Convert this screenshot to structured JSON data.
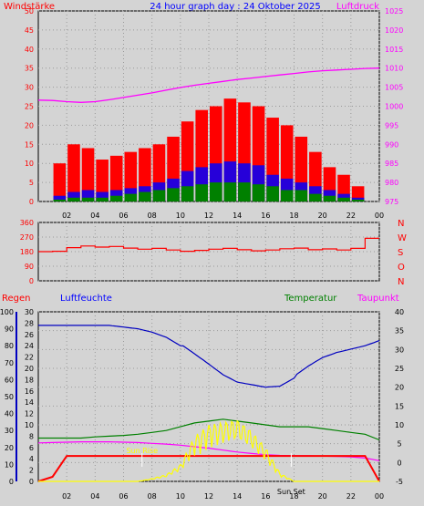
{
  "header": {
    "left_label": "Windstärke",
    "title": "24 hour graph day : 24 Oktober 2025",
    "right_label": "Luftdruck"
  },
  "colors": {
    "wind": "#ff0000",
    "gust": "#0000ff",
    "calm": "#008000",
    "pressure": "#ff00ff",
    "direction": "#ff0000",
    "humidity": "#0000c0",
    "temperature": "#008000",
    "dewpoint": "#ff00ff",
    "rain": "#ff0000",
    "sun": "#ffff00",
    "axis": "#000000"
  },
  "time_ticks": [
    "02",
    "04",
    "06",
    "08",
    "10",
    "12",
    "14",
    "16",
    "18",
    "20",
    "22",
    "00"
  ],
  "chart_data": [
    {
      "type": "bar",
      "y_left": {
        "label": "Windstärke",
        "ticks": [
          0,
          5,
          10,
          15,
          20,
          25,
          30,
          35,
          40,
          45,
          50
        ],
        "lim": [
          0,
          50
        ]
      },
      "y_right": {
        "label": "Luftdruck",
        "ticks": [
          975,
          980,
          985,
          990,
          995,
          1000,
          1005,
          1010,
          1015,
          1020,
          1025
        ],
        "lim": [
          975,
          1025
        ]
      },
      "x_hours": [
        0,
        1,
        2,
        3,
        4,
        5,
        6,
        7,
        8,
        9,
        10,
        11,
        12,
        13,
        14,
        15,
        16,
        17,
        18,
        19,
        20,
        21,
        22,
        23,
        24
      ],
      "series": [
        {
          "name": "",
          "color_key": "wind",
          "values": [
            0,
            10,
            15,
            14,
            11,
            12,
            13,
            14,
            15,
            17,
            21,
            24,
            25,
            27,
            26,
            25,
            22,
            20,
            17,
            13,
            9,
            7,
            4,
            0,
            0
          ]
        },
        {
          "name": "",
          "color_key": "gust",
          "values": [
            0,
            1.5,
            2.5,
            3,
            2.5,
            3,
            3.5,
            4,
            5,
            6,
            8,
            9,
            10,
            10.5,
            10,
            9.5,
            7,
            6,
            5,
            4,
            3,
            2,
            1,
            0,
            0
          ]
        },
        {
          "name": "",
          "color_key": "calm",
          "values": [
            0,
            0.5,
            1,
            1,
            1,
            1.5,
            2,
            2.5,
            3,
            3.5,
            4,
            4.5,
            5,
            5,
            5,
            4.5,
            4,
            3,
            3,
            2,
            1.5,
            1,
            0.5,
            0,
            0
          ]
        },
        {
          "name": "",
          "color_key": "pressure",
          "values": [
            1001.6,
            1001.5,
            1001.2,
            1001,
            1001.2,
            1001.7,
            1002.3,
            1002.9,
            1003.5,
            1004.2,
            1004.9,
            1005.5,
            1006,
            1006.5,
            1007,
            1007.4,
            1007.8,
            1008.2,
            1008.6,
            1009,
            1009.3,
            1009.5,
            1009.7,
            1009.9,
            1010
          ]
        }
      ]
    },
    {
      "type": "line",
      "y_left": {
        "ticks": [
          0,
          90,
          180,
          270,
          360
        ],
        "lim": [
          0,
          360
        ]
      },
      "y_right_labels": [
        "N",
        "W",
        "S",
        "O",
        "N"
      ],
      "x_hours": [
        0,
        1,
        2,
        3,
        4,
        5,
        6,
        7,
        8,
        9,
        10,
        11,
        12,
        13,
        14,
        15,
        16,
        17,
        18,
        19,
        20,
        21,
        22,
        23,
        24
      ],
      "series": [
        {
          "name": "",
          "color_key": "direction",
          "values": [
            180,
            182,
            205,
            215,
            208,
            212,
            202,
            195,
            200,
            190,
            182,
            188,
            195,
            200,
            192,
            185,
            190,
            198,
            202,
            192,
            197,
            190,
            200,
            262,
            262
          ]
        }
      ]
    },
    {
      "type": "line",
      "labels": {
        "rain": "Regen",
        "humidity": "Luftfeuchte",
        "temperature": "Temperatur",
        "dewpoint": "Taupunkt"
      },
      "y_humidity": {
        "ticks": [
          0,
          10,
          20,
          30,
          40,
          50,
          60,
          70,
          80,
          90,
          100
        ],
        "lim": [
          0,
          100
        ]
      },
      "y_rain": {
        "ticks": [
          0,
          2,
          4,
          6,
          8,
          10,
          12,
          14,
          16,
          18,
          20,
          22,
          24,
          26,
          28,
          30
        ],
        "lim": [
          0,
          30
        ]
      },
      "y_temperature": {
        "ticks": [
          -5,
          0,
          5,
          10,
          15,
          20,
          25,
          30,
          35,
          40
        ],
        "lim": [
          -5,
          40
        ]
      },
      "x_hours": [
        0,
        1,
        2,
        3,
        4,
        5,
        6,
        7,
        8,
        9,
        10,
        11,
        12,
        13,
        14,
        15,
        16,
        17,
        18,
        19,
        20,
        21,
        22,
        23,
        24
      ],
      "annotations": [
        {
          "text": "Sun Rise",
          "hour": 7.3
        },
        {
          "text": "Sun Set",
          "hour": 17.8
        }
      ],
      "series": [
        {
          "name": "",
          "color_key": "humidity",
          "axis": "humidity",
          "values": [
            92,
            92,
            92,
            92,
            92,
            92,
            91,
            90,
            88,
            85,
            80,
            74,
            68,
            62,
            58,
            57,
            56,
            57,
            62,
            68,
            73,
            76,
            78,
            80,
            83
          ]
        },
        {
          "name": "",
          "color_key": "temperature",
          "axis": "temperature",
          "values": [
            6.5,
            6.5,
            6.5,
            6.5,
            6.8,
            7,
            7.2,
            7.5,
            8,
            8.5,
            9.5,
            10.5,
            11,
            11.5,
            11,
            10.5,
            10,
            9.5,
            9.5,
            9.5,
            9,
            8.5,
            8,
            7.5,
            6
          ]
        },
        {
          "name": "",
          "color_key": "dewpoint",
          "axis": "temperature",
          "values": [
            5.2,
            5.3,
            5.4,
            5.5,
            5.5,
            5.5,
            5.4,
            5.3,
            5.1,
            4.9,
            4.6,
            4.2,
            3.8,
            3.3,
            2.8,
            2.4,
            2.1,
            1.9,
            1.8,
            1.8,
            1.7,
            1.6,
            1.5,
            1.2,
            0.5
          ]
        },
        {
          "name": "",
          "color_key": "rain",
          "axis": "rain",
          "values": [
            0,
            0.8,
            4.5,
            4.5,
            4.5,
            4.5,
            4.5,
            4.5,
            4.5,
            4.5,
            4.5,
            4.5,
            4.5,
            4.5,
            4.5,
            4.5,
            4.5,
            4.5,
            4.5,
            4.5,
            4.5,
            4.5,
            4.5,
            4.5,
            0
          ]
        },
        {
          "name": "",
          "color_key": "sun",
          "axis": "rain",
          "values": [
            0,
            0,
            0,
            0,
            0,
            0,
            0,
            0,
            0.5,
            1.2,
            3,
            8,
            10,
            10.5,
            11,
            9,
            6,
            1.5,
            0,
            0,
            0,
            0,
            0,
            0,
            0
          ]
        }
      ]
    }
  ]
}
